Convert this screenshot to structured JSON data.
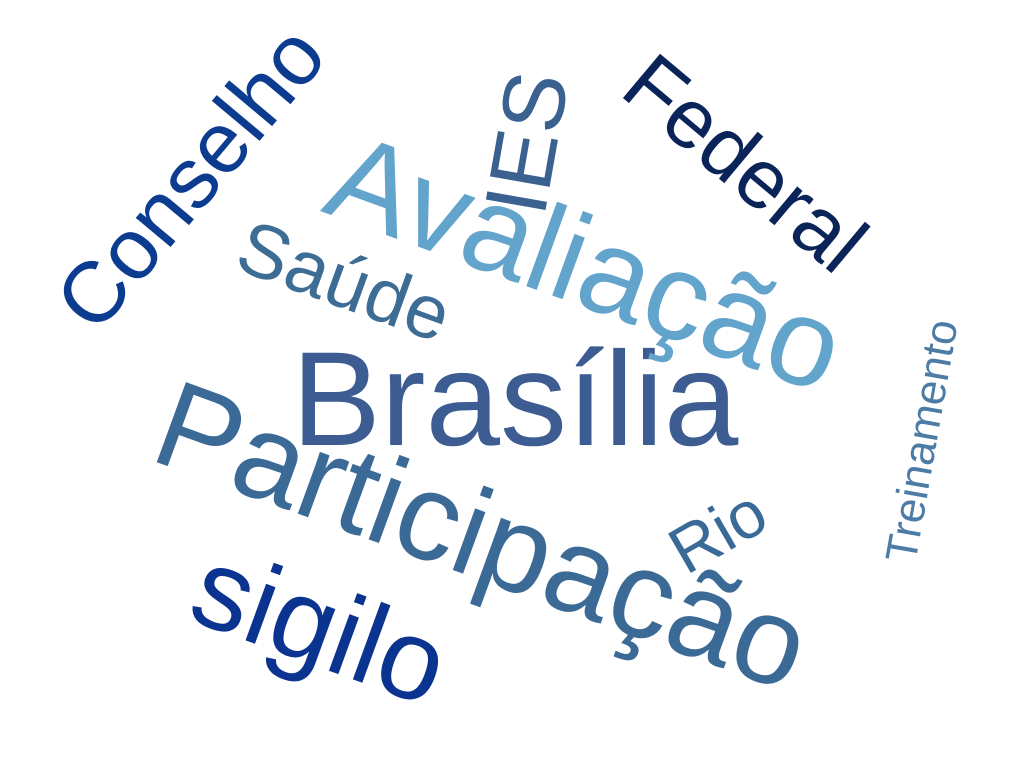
{
  "word_cloud": {
    "words": [
      {
        "id": "participacao",
        "text": "Participação",
        "color": "#3b6a96"
      },
      {
        "id": "brasilia",
        "text": "Brasília",
        "color": "#3c5c92"
      },
      {
        "id": "avaliacao",
        "text": "Avaliação",
        "color": "#62a4cc"
      },
      {
        "id": "sigilo",
        "text": "sigilo",
        "color": "#0b3491"
      },
      {
        "id": "conselho",
        "text": "Conselho",
        "color": "#0b3c8f"
      },
      {
        "id": "federal",
        "text": "Federal",
        "color": "#0a2459"
      },
      {
        "id": "ies",
        "text": "IES",
        "color": "#3a6190"
      },
      {
        "id": "saude",
        "text": "Saúde",
        "color": "#3d6c95"
      },
      {
        "id": "rio",
        "text": "Rio",
        "color": "#3a6a98"
      },
      {
        "id": "treinamento",
        "text": "Treinamento",
        "color": "#4c7ba6"
      }
    ]
  }
}
